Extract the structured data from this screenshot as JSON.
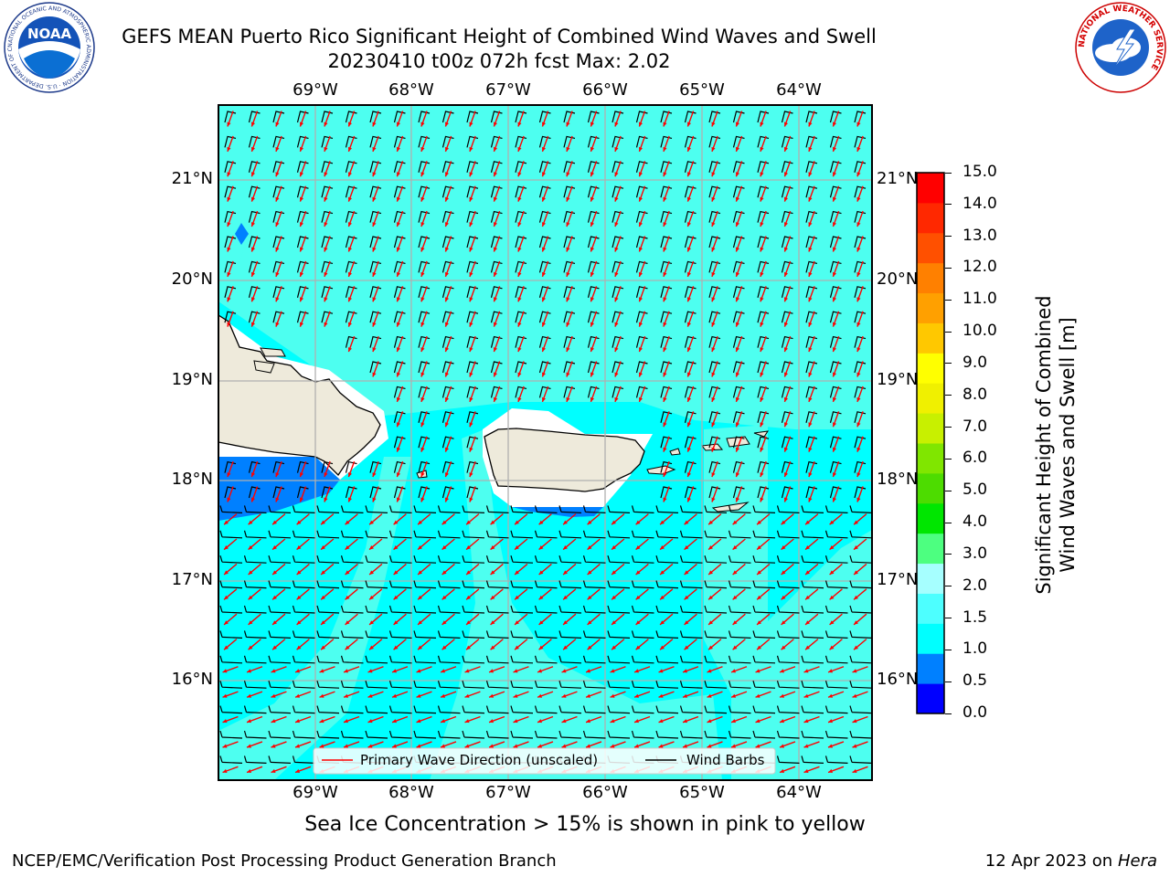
{
  "header": {
    "title_line1": "GEFS MEAN Puerto Rico Significant Height of Combined Wind Waves and Swell",
    "title_line2": "20230410 t00z 072h fcst   Max: 2.02",
    "noaa_logo_text": "NOAA",
    "noaa_ring_text": "NATIONAL OCEANIC AND ATMOSPHERIC ADMINISTRATION · U.S. DEPARTMENT OF COMMERCE",
    "nws_ring_text": "NATIONAL WEATHER SERVICE"
  },
  "map": {
    "lon_labels": [
      "69°W",
      "68°W",
      "67°W",
      "66°W",
      "65°W",
      "64°W"
    ],
    "lat_labels": [
      "21°N",
      "20°N",
      "19°N",
      "18°N",
      "17°N",
      "16°N"
    ],
    "legend": {
      "wave_label": "Primary Wave Direction (unscaled)",
      "barb_label": "Wind Barbs",
      "wave_color": "#ff0000",
      "barb_color": "#000000"
    },
    "colors": {
      "ocean_main": "#00ffff",
      "ocean_light": "#4dfff0",
      "ocean_mid": "#00e6ff",
      "ocean_dark": "#0080ff",
      "land": "#eeeadb",
      "coast": "#000000",
      "grid": "#b0b0b0"
    }
  },
  "colorbar": {
    "ticks": [
      "15.0",
      "14.0",
      "13.0",
      "12.0",
      "11.0",
      "10.0",
      "9.0",
      "8.0",
      "7.0",
      "6.0",
      "5.0",
      "4.0",
      "3.0",
      "2.0",
      "1.5",
      "1.0",
      "0.5",
      "0.0"
    ],
    "colors": [
      "#0000ff",
      "#0080ff",
      "#00ffff",
      "#4dffff",
      "#a6ffff",
      "#4dff80",
      "#00e600",
      "#4ddc00",
      "#80e600",
      "#c8f000",
      "#f0f000",
      "#ffff00",
      "#ffc800",
      "#ffa000",
      "#ff8000",
      "#ff5000",
      "#ff2800",
      "#ff0000"
    ],
    "label_line1": "Significant Height of Combined",
    "label_line2": "Wind Waves and Swell [m]"
  },
  "caption": "Sea Ice Concentration > 15% is shown in pink to yellow",
  "footer": {
    "left": "NCEP/EMC/Verification Post Processing Product Generation Branch",
    "right_prefix": "12 Apr 2023 on ",
    "right_host": "Hera"
  }
}
